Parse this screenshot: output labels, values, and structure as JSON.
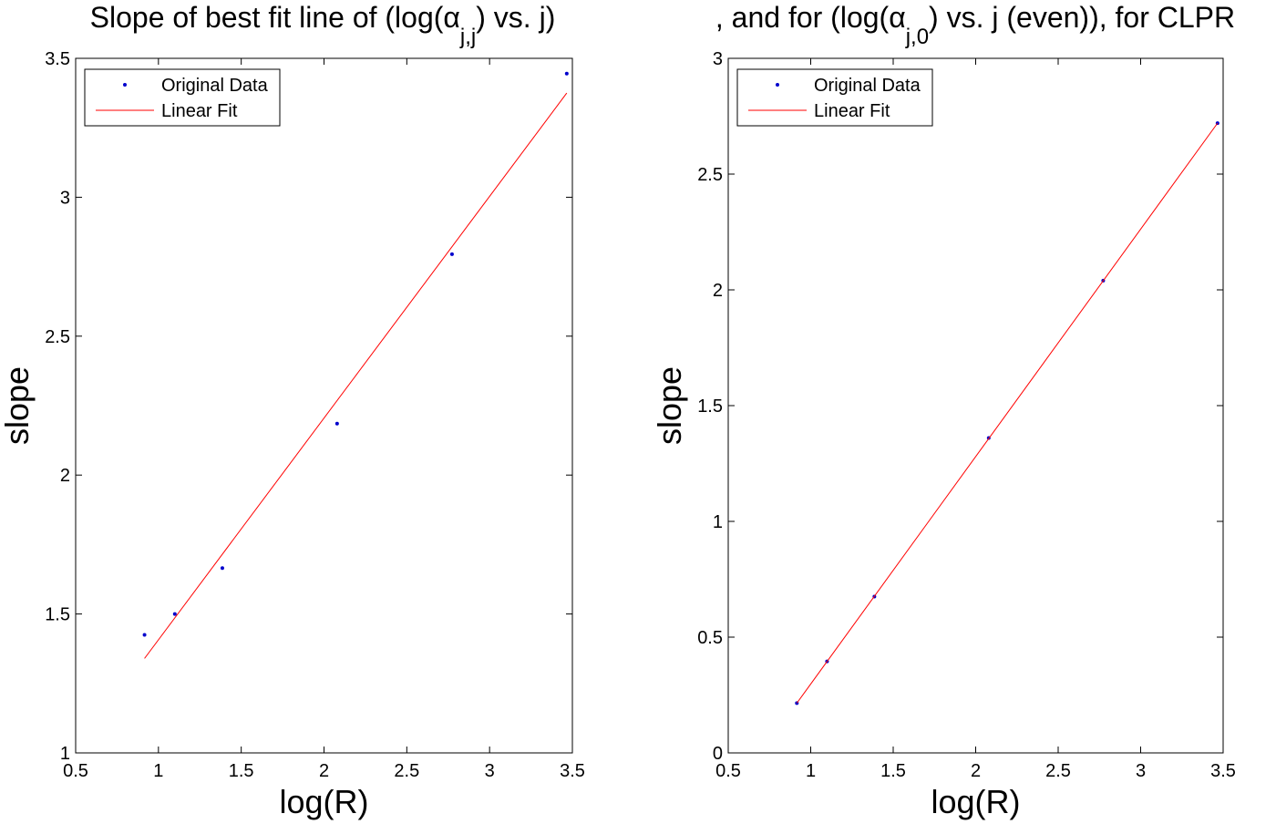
{
  "figure": {
    "title_left": "Slope of best fit line of (log(α",
    "title_left_sub": "j,j",
    "title_left_tail": ") vs. j)",
    "title_right": ", and for (log(α",
    "title_right_sub": "j,0",
    "title_right_tail": ") vs. j (even)), for CLPR"
  },
  "chart_data": [
    {
      "type": "scatter",
      "xlabel": "log(R)",
      "ylabel": "slope",
      "xlim": [
        0.5,
        3.5
      ],
      "ylim": [
        1,
        3.5
      ],
      "xticks": [
        0.5,
        1,
        1.5,
        2,
        2.5,
        3,
        3.5
      ],
      "yticks": [
        1,
        1.5,
        2,
        2.5,
        3,
        3.5
      ],
      "xtick_labels": [
        "0.5",
        "1",
        "1.5",
        "2",
        "2.5",
        "3",
        "3.5"
      ],
      "ytick_labels": [
        "1",
        "1.5",
        "2",
        "2.5",
        "3",
        "3.5"
      ],
      "grid": false,
      "legend_position": "top-left",
      "series": [
        {
          "name": "Original Data",
          "kind": "points",
          "color": "#0000cc",
          "x": [
            0.916,
            1.099,
            1.386,
            2.079,
            2.773,
            3.466
          ],
          "y": [
            1.425,
            1.5,
            1.665,
            2.185,
            2.795,
            3.445
          ]
        },
        {
          "name": "Linear Fit",
          "kind": "line",
          "color": "#ff0000",
          "x": [
            0.916,
            3.466
          ],
          "y": [
            1.34,
            3.375
          ]
        }
      ]
    },
    {
      "type": "scatter",
      "xlabel": "log(R)",
      "ylabel": "slope",
      "xlim": [
        0.5,
        3.5
      ],
      "ylim": [
        0,
        3
      ],
      "xticks": [
        0.5,
        1,
        1.5,
        2,
        2.5,
        3,
        3.5
      ],
      "yticks": [
        0,
        0.5,
        1,
        1.5,
        2,
        2.5,
        3
      ],
      "xtick_labels": [
        "0.5",
        "1",
        "1.5",
        "2",
        "2.5",
        "3",
        "3.5"
      ],
      "ytick_labels": [
        "0",
        "0.5",
        "1",
        "1.5",
        "2",
        "2.5",
        "3"
      ],
      "grid": false,
      "legend_position": "top-left",
      "series": [
        {
          "name": "Original Data",
          "kind": "points",
          "color": "#0000cc",
          "x": [
            0.916,
            1.099,
            1.386,
            2.079,
            2.773,
            3.466
          ],
          "y": [
            0.215,
            0.395,
            0.675,
            1.36,
            2.04,
            2.72
          ]
        },
        {
          "name": "Linear Fit",
          "kind": "line",
          "color": "#ff0000",
          "x": [
            0.916,
            3.466
          ],
          "y": [
            0.215,
            2.72
          ]
        }
      ]
    }
  ]
}
